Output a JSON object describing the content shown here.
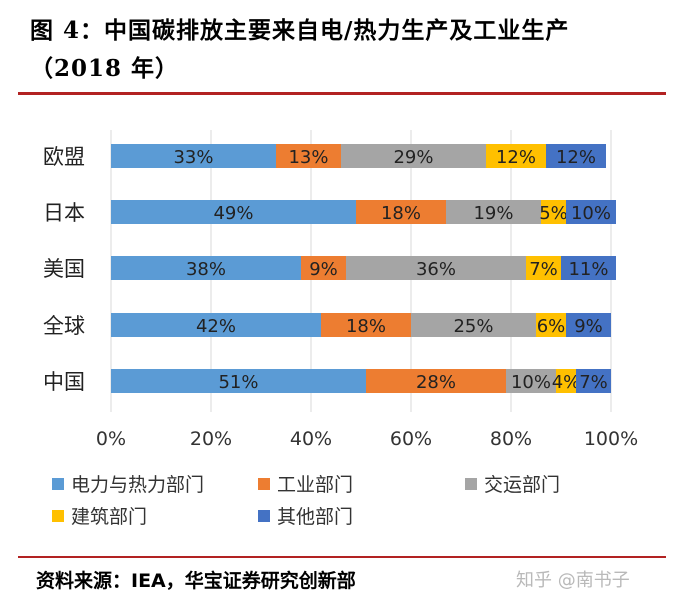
{
  "title": {
    "line1": "图 4：中国碳排放主要来自电/热力生产及工业生产",
    "line2": "（2018 年）"
  },
  "source": "资料来源：IEA，华宝证券研究创新部",
  "watermark": "知乎 @南书子",
  "colors": {
    "accent_rule": "#b22222",
    "series": [
      "#5b9bd5",
      "#ed7d31",
      "#a5a5a5",
      "#ffc000",
      "#4472c4"
    ]
  },
  "chart_data": {
    "type": "bar",
    "orientation": "horizontal",
    "stacked": "percent",
    "categories": [
      "欧盟",
      "日本",
      "美国",
      "全球",
      "中国"
    ],
    "series": [
      {
        "name": "电力与热力部门",
        "values": [
          33,
          49,
          38,
          42,
          51
        ]
      },
      {
        "name": "工业部门",
        "values": [
          13,
          18,
          9,
          18,
          28
        ]
      },
      {
        "name": "交运部门",
        "values": [
          29,
          19,
          36,
          25,
          10
        ]
      },
      {
        "name": "建筑部门",
        "values": [
          12,
          5,
          7,
          6,
          4
        ]
      },
      {
        "name": "其他部门",
        "values": [
          12,
          10,
          11,
          9,
          7
        ]
      }
    ],
    "xlim": [
      0,
      100
    ],
    "x_ticks": [
      "0%",
      "20%",
      "40%",
      "60%",
      "80%",
      "100%"
    ],
    "label_suffix": "%",
    "grid": true,
    "legend_position": "bottom"
  }
}
